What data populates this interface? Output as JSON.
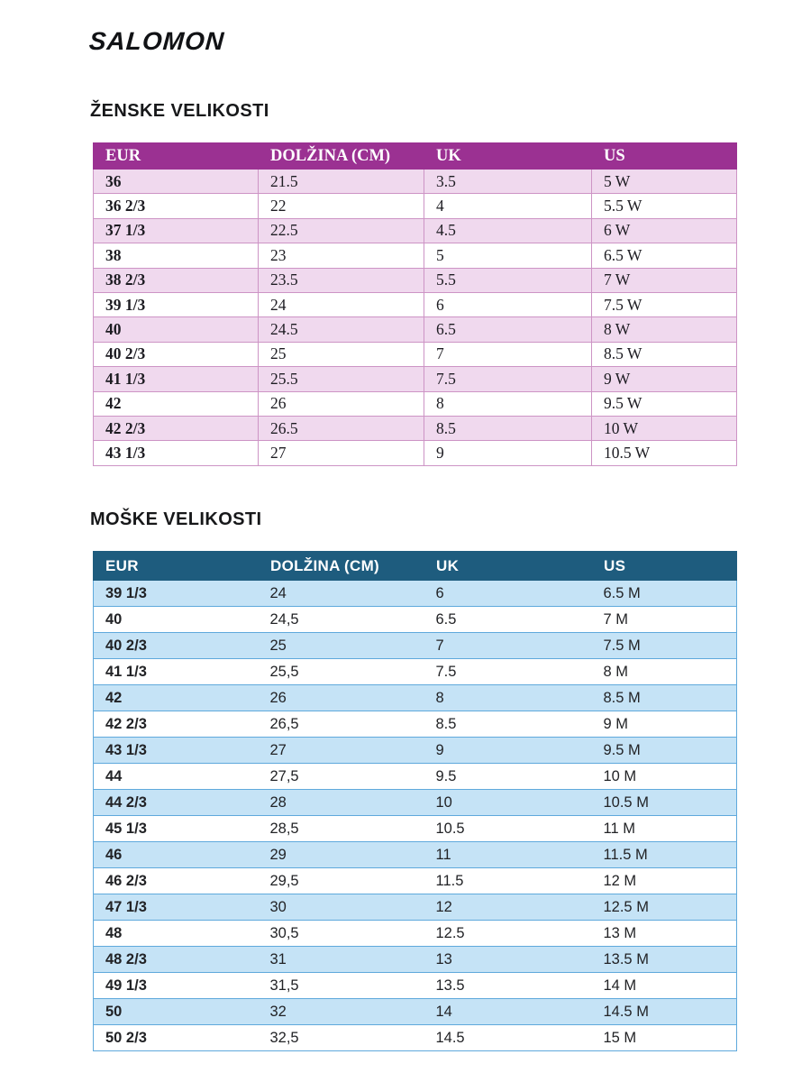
{
  "brand": {
    "logo_text": "SALOMON"
  },
  "women": {
    "title": "ŽENSKE VELIKOSTI",
    "columns": [
      "EUR",
      "DOLŽINA (CM)",
      "UK",
      "US"
    ],
    "rows": [
      [
        "36",
        "21.5",
        "3.5",
        "5 W"
      ],
      [
        "36 2/3",
        "22",
        "4",
        "5.5 W"
      ],
      [
        "37 1/3",
        "22.5",
        "4.5",
        "6 W"
      ],
      [
        "38",
        "23",
        "5",
        "6.5 W"
      ],
      [
        "38 2/3",
        "23.5",
        "5.5",
        "7 W"
      ],
      [
        "39 1/3",
        "24",
        "6",
        "7.5 W"
      ],
      [
        "40",
        "24.5",
        "6.5",
        "8 W"
      ],
      [
        "40 2/3",
        "25",
        "7",
        "8.5 W"
      ],
      [
        "41 1/3",
        "25.5",
        "7.5",
        "9 W"
      ],
      [
        "42",
        "26",
        "8",
        "9.5 W"
      ],
      [
        "42 2/3",
        "26.5",
        "8.5",
        "10 W"
      ],
      [
        "43 1/3",
        "27",
        "9",
        "10.5 W"
      ]
    ],
    "colors": {
      "header_bg": "#9B3192",
      "header_text": "#FFFFFF",
      "row_alt_bg": "#F0D9EE",
      "border": "#CD94C5"
    }
  },
  "men": {
    "title": "MOŠKE VELIKOSTI",
    "columns": [
      "EUR",
      "DOLŽINA (CM)",
      "UK",
      "US"
    ],
    "rows": [
      [
        "39 1/3",
        "24",
        "6",
        "6.5 M"
      ],
      [
        "40",
        "24,5",
        "6.5",
        "7 M"
      ],
      [
        "40 2/3",
        "25",
        "7",
        "7.5 M"
      ],
      [
        "41 1/3",
        "25,5",
        "7.5",
        "8 M"
      ],
      [
        "42",
        "26",
        "8",
        "8.5 M"
      ],
      [
        "42 2/3",
        "26,5",
        "8.5",
        "9 M"
      ],
      [
        "43 1/3",
        "27",
        "9",
        "9.5 M"
      ],
      [
        "44",
        "27,5",
        "9.5",
        "10 M"
      ],
      [
        "44 2/3",
        "28",
        "10",
        "10.5 M"
      ],
      [
        "45 1/3",
        "28,5",
        "10.5",
        "11 M"
      ],
      [
        "46",
        "29",
        "11",
        "11.5 M"
      ],
      [
        "46 2/3",
        "29,5",
        "11.5",
        "12 M"
      ],
      [
        "47 1/3",
        "30",
        "12",
        "12.5 M"
      ],
      [
        "48",
        "30,5",
        "12.5",
        "13 M"
      ],
      [
        "48 2/3",
        "31",
        "13",
        "13.5 M"
      ],
      [
        "49 1/3",
        "31,5",
        "13.5",
        "14 M"
      ],
      [
        "50",
        "32",
        "14",
        "14.5 M"
      ],
      [
        "50 2/3",
        "32,5",
        "14.5",
        "15 M"
      ]
    ],
    "colors": {
      "header_bg": "#1E5C7E",
      "header_text": "#FFFFFF",
      "row_alt_bg": "#C5E3F6",
      "border": "#5FA9DC"
    }
  }
}
